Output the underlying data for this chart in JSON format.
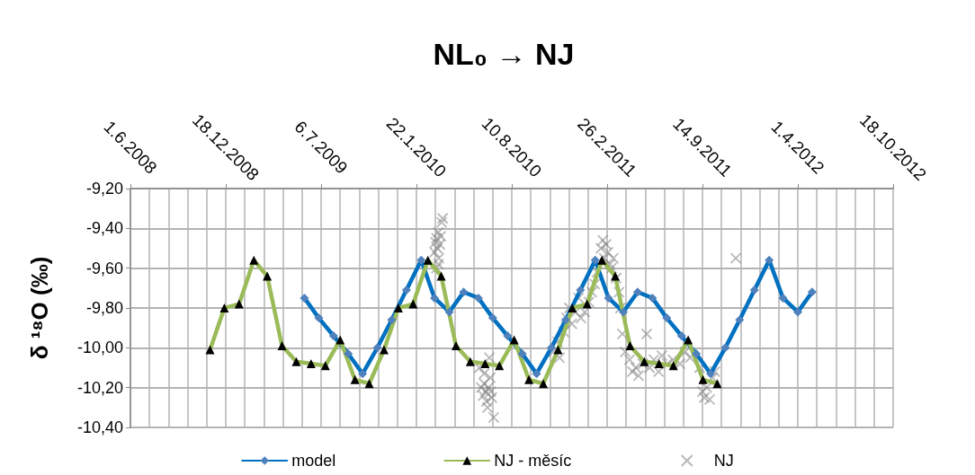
{
  "chart_data": {
    "type": "line",
    "title": "NL₀ → NJ",
    "ylabel": "δ ¹⁸O (‰)",
    "xlim": [
      "2008-06-01",
      "2012-10-18"
    ],
    "xticks": [
      {
        "value": "2008-06-01",
        "label": "1.6.2008"
      },
      {
        "value": "2008-12-18",
        "label": "18.12.2008"
      },
      {
        "value": "2009-07-06",
        "label": "6.7.2009"
      },
      {
        "value": "2010-01-22",
        "label": "22.1.2010"
      },
      {
        "value": "2010-08-10",
        "label": "10.8.2010"
      },
      {
        "value": "2011-02-26",
        "label": "26.2.2011"
      },
      {
        "value": "2011-09-14",
        "label": "14.9.2011"
      },
      {
        "value": "2012-04-01",
        "label": "1.4.2012"
      },
      {
        "value": "2012-10-18",
        "label": "18.10.2012"
      }
    ],
    "ylim": [
      -10.4,
      -9.2
    ],
    "yticks": [
      {
        "value": -10.4,
        "label": "-10,40"
      },
      {
        "value": -10.2,
        "label": "-10,20"
      },
      {
        "value": -10.0,
        "label": "-10,00"
      },
      {
        "value": -9.8,
        "label": "-9,80"
      },
      {
        "value": -9.6,
        "label": "-9,60"
      },
      {
        "value": -9.4,
        "label": "-9,40"
      },
      {
        "value": -9.2,
        "label": "-9,20"
      }
    ],
    "grid": true,
    "legend": "bottom",
    "line_style": "solid",
    "series": [
      {
        "name": "model",
        "type": "line",
        "color": "#0070c0",
        "marker": "diamond",
        "x": [
          "2009-06-01",
          "2009-07-01",
          "2009-08-01",
          "2009-09-01",
          "2009-10-01",
          "2009-11-01",
          "2009-12-01",
          "2010-01-01",
          "2010-02-01",
          "2010-03-01",
          "2010-04-01",
          "2010-05-01",
          "2010-06-01",
          "2010-07-01",
          "2010-08-01",
          "2010-09-01",
          "2010-10-01",
          "2010-11-01",
          "2010-12-01",
          "2011-01-01",
          "2011-02-01",
          "2011-03-01",
          "2011-04-01",
          "2011-05-01",
          "2011-06-01",
          "2011-07-01",
          "2011-08-01",
          "2011-09-01",
          "2011-10-01",
          "2011-11-01",
          "2011-12-01",
          "2012-01-01",
          "2012-02-01",
          "2012-03-01",
          "2012-04-01",
          "2012-05-01"
        ],
        "values": [
          -9.75,
          -9.85,
          -9.94,
          -10.03,
          -10.13,
          -10.0,
          -9.86,
          -9.71,
          -9.56,
          -9.75,
          -9.82,
          -9.72,
          -9.75,
          -9.85,
          -9.94,
          -10.03,
          -10.13,
          -10.0,
          -9.86,
          -9.71,
          -9.56,
          -9.75,
          -9.82,
          -9.72,
          -9.75,
          -9.85,
          -9.94,
          -10.03,
          -10.13,
          -10.0,
          -9.86,
          -9.71,
          -9.56,
          -9.75,
          -9.82,
          -9.72
        ]
      },
      {
        "name": "NJ - měsíc",
        "type": "line",
        "color": "#9bbb59",
        "marker": "triangle",
        "x": [
          "2008-11-15",
          "2008-12-15",
          "2009-01-15",
          "2009-02-15",
          "2009-03-15",
          "2009-04-15",
          "2009-05-15",
          "2009-06-15",
          "2009-07-15",
          "2009-08-15",
          "2009-09-15",
          "2009-10-15",
          "2009-11-15",
          "2009-12-15",
          "2010-01-15",
          "2010-02-15",
          "2010-03-15",
          "2010-04-15",
          "2010-05-15",
          "2010-06-15",
          "2010-07-15",
          "2010-08-15",
          "2010-09-15",
          "2010-10-15",
          "2010-11-15",
          "2010-12-15",
          "2011-01-15",
          "2011-02-15",
          "2011-03-15",
          "2011-04-15",
          "2011-05-15",
          "2011-06-15",
          "2011-07-15",
          "2011-08-15",
          "2011-09-15",
          "2011-10-15"
        ],
        "values": [
          -10.01,
          -9.8,
          -9.78,
          -9.56,
          -9.64,
          -9.99,
          -10.07,
          -10.08,
          -10.09,
          -9.96,
          -10.16,
          -10.18,
          -10.01,
          -9.8,
          -9.78,
          -9.56,
          -9.64,
          -9.99,
          -10.07,
          -10.08,
          -10.09,
          -9.96,
          -10.16,
          -10.18,
          -10.01,
          -9.8,
          -9.78,
          -9.56,
          -9.64,
          -9.99,
          -10.07,
          -10.08,
          -10.09,
          -9.96,
          -10.16,
          -10.18
        ]
      },
      {
        "name": "NJ",
        "type": "scatter",
        "color": "#808080",
        "marker": "cross",
        "x": [
          "2010-03-01",
          "2010-03-03",
          "2010-03-05",
          "2010-03-07",
          "2010-03-09",
          "2010-03-10",
          "2010-03-12",
          "2010-03-14",
          "2010-03-16",
          "2010-03-18",
          "2010-03-09",
          "2010-03-05",
          "2010-06-03",
          "2010-06-07",
          "2010-06-11",
          "2010-06-13",
          "2010-06-16",
          "2010-06-18",
          "2010-06-20",
          "2010-06-22",
          "2010-06-24",
          "2010-06-26",
          "2010-06-27",
          "2010-06-29",
          "2010-07-03",
          "2010-06-13",
          "2010-11-05",
          "2010-11-14",
          "2010-11-18",
          "2010-11-27",
          "2010-12-03",
          "2010-12-09",
          "2010-12-14",
          "2010-12-22",
          "2010-12-28",
          "2011-01-02",
          "2011-01-10",
          "2011-01-19",
          "2011-01-25",
          "2011-01-31",
          "2011-02-05",
          "2011-02-13",
          "2011-02-17",
          "2011-02-20",
          "2011-02-24",
          "2011-02-28",
          "2011-03-04",
          "2011-03-07",
          "2011-03-11",
          "2011-03-17",
          "2011-03-23",
          "2011-03-26",
          "2011-03-30",
          "2011-04-05",
          "2011-04-14",
          "2011-04-20",
          "2011-04-27",
          "2011-05-03",
          "2011-05-12",
          "2011-05-20",
          "2011-05-26",
          "2011-06-04",
          "2011-06-14",
          "2011-06-21",
          "2011-07-02",
          "2011-07-14",
          "2011-07-29",
          "2011-08-09",
          "2011-08-19",
          "2011-09-08",
          "2011-09-14",
          "2011-09-18",
          "2011-09-23",
          "2011-09-29",
          "2011-10-05",
          "2011-10-10",
          "2011-11-23"
        ],
        "values": [
          -9.52,
          -9.47,
          -9.45,
          -9.5,
          -9.42,
          -9.55,
          -9.48,
          -9.44,
          -9.37,
          -9.35,
          -9.58,
          -9.6,
          -10.1,
          -10.2,
          -10.24,
          -10.18,
          -10.22,
          -10.27,
          -10.3,
          -10.2,
          -10.05,
          -10.15,
          -10.22,
          -10.25,
          -10.35,
          -10.13,
          -10.02,
          -9.97,
          -10.05,
          -9.92,
          -9.85,
          -9.8,
          -9.88,
          -9.82,
          -9.75,
          -9.85,
          -9.82,
          -9.77,
          -9.72,
          -9.68,
          -9.62,
          -9.5,
          -9.46,
          -9.55,
          -9.48,
          -9.52,
          -9.58,
          -9.6,
          -9.55,
          -9.65,
          -9.72,
          -9.8,
          -9.93,
          -10.02,
          -10.06,
          -10.12,
          -10.1,
          -10.14,
          -10.08,
          -9.93,
          -10.1,
          -10.06,
          -10.12,
          -10.04,
          -10.08,
          -10.06,
          -10.08,
          -10.02,
          -10.05,
          -10.1,
          -10.22,
          -10.25,
          -10.2,
          -10.26,
          -10.15,
          -10.12,
          -9.55
        ]
      }
    ]
  }
}
